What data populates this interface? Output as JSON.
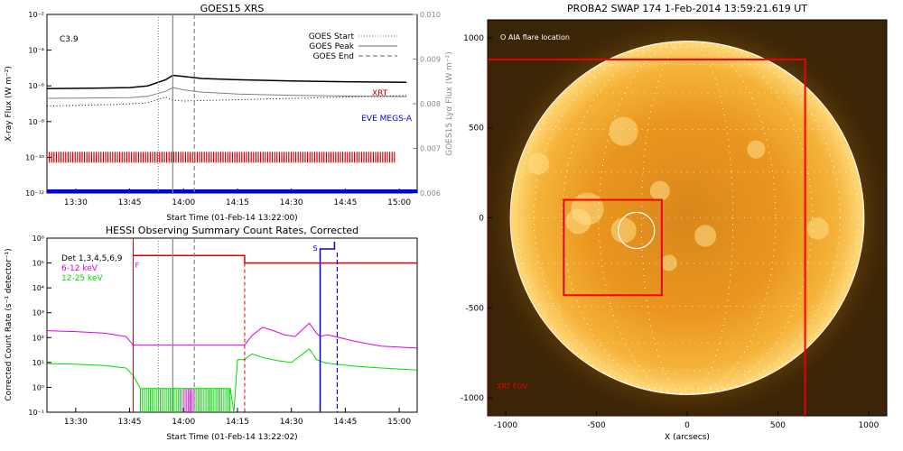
{
  "colors": {
    "goes_long": "#000000",
    "goes_short": "#808080",
    "lyx": "#000000",
    "xrt": "#cc0000",
    "eve": "#0000dd",
    "det": "#000000",
    "low": "#dd00dd",
    "mid": "#00dd00",
    "attenuator": "#dd0000",
    "saa": "#0000dd",
    "sun_bg": "#3a2506",
    "sun_disk": "#f2a21c",
    "fov": "#ee0000"
  },
  "panels": {
    "goes": {
      "title": "GOES15 XRS",
      "class_label": "C3.9",
      "ylabel_left": "X-ray Flux (W m⁻²)",
      "ylabel_right": "GOES15 Lyα Flux (W m⁻²)",
      "xlabel": "Start Time (01-Feb-14 13:22:00)",
      "legend": [
        {
          "label": "GOES Start",
          "style": "dotted"
        },
        {
          "label": "GOES Peak",
          "style": "solid"
        },
        {
          "label": "GOES End",
          "style": "dashed"
        }
      ],
      "xrt_label": "XRT",
      "eve_label": "EVE MEGS-A"
    },
    "hessi": {
      "title": "HESSI Observing Summary Count Rates, Corrected",
      "ylabel": "Corrected Count Rate (s⁻¹ detector⁻¹)",
      "xlabel": "Start Time (01-Feb-14 13:22:02)",
      "legend": [
        {
          "label": "Det 1,3,4,5,6,9",
          "color_key": "det"
        },
        {
          "label": "6-12 keV",
          "color_key": "low"
        },
        {
          "label": "12-25 keV",
          "color_key": "mid"
        }
      ],
      "flag_f": "F",
      "flag_s": "S"
    },
    "swap": {
      "title": "PROBA2 SWAP 174   1-Feb-2014 13:59:21.619 UT",
      "aia_label": "O AIA flare location",
      "xrt_fov_label": "XRT FOV",
      "xlabel": "X (arcsecs)"
    }
  },
  "chart_data": [
    {
      "type": "line",
      "title": "GOES15 XRS",
      "xlabel": "Start Time (01-Feb-14 13:22:00)",
      "ylabel": "X-ray Flux (W m⁻²)",
      "ylabel_right": "GOES15 Lyα Flux (W m⁻²)",
      "x_ticks": [
        "13:30",
        "13:45",
        "14:00",
        "14:15",
        "14:30",
        "14:45",
        "15:00"
      ],
      "xlim": [
        "13:22",
        "15:05"
      ],
      "y_scale": "log",
      "y_ticks": [
        "10⁻²",
        "10⁻⁴",
        "10⁻⁶",
        "10⁻⁸",
        "10⁻¹⁰",
        "10⁻¹²"
      ],
      "ylim": [
        1e-12,
        0.01
      ],
      "y_right_ticks": [
        "0.010",
        "0.009",
        "0.008",
        "0.007",
        "0.006"
      ],
      "y_right_lim": [
        0.006,
        0.01
      ],
      "markers": {
        "goes_start": "13:53",
        "goes_peak": "13:57",
        "goes_end": "14:03"
      },
      "series": [
        {
          "x": [
            "13:22",
            "13:35",
            "13:45",
            "13:50",
            "13:55",
            "13:57",
            "14:00",
            "14:05",
            "14:15",
            "14:30",
            "14:45",
            "15:02"
          ],
          "values": [
            7e-07,
            7.5e-07,
            8e-07,
            1e-06,
            2.2e-06,
            3.9e-06,
            3.4e-06,
            2.6e-06,
            2.2e-06,
            1.9e-06,
            1.7e-06,
            1.6e-06
          ]
        },
        {
          "x": [
            "13:22",
            "13:35",
            "13:45",
            "13:50",
            "13:55",
            "13:57",
            "14:00",
            "14:05",
            "14:15",
            "14:30",
            "14:45",
            "15:02"
          ],
          "values": [
            2e-07,
            2.1e-07,
            2.2e-07,
            2.6e-07,
            5e-07,
            8e-07,
            6e-07,
            4.5e-07,
            3.5e-07,
            3e-07,
            2.7e-07,
            2.5e-07
          ]
        },
        {
          "axis": "right",
          "x": [
            "13:22",
            "13:40",
            "13:50",
            "13:55",
            "13:57",
            "14:00",
            "14:10",
            "14:30",
            "14:50",
            "15:02"
          ],
          "values": [
            0.00795,
            0.00798,
            0.00802,
            0.00815,
            0.00808,
            0.00806,
            0.00808,
            0.00812,
            0.00816,
            0.00818
          ]
        },
        {
          "name": "XRT",
          "style": "ticks",
          "from": "13:22",
          "to": "14:59",
          "y": 1e-10
        },
        {
          "name": "EVE MEGS-A",
          "style": "bar",
          "from": "13:22",
          "to": "15:05",
          "y": 1e-12
        }
      ]
    },
    {
      "type": "line",
      "title": "HESSI Observing Summary Count Rates, Corrected",
      "xlabel": "Start Time (01-Feb-14 13:22:02)",
      "ylabel": "Corrected Count Rate (s⁻¹ detector⁻¹)",
      "x_ticks": [
        "13:30",
        "13:45",
        "14:00",
        "14:15",
        "14:30",
        "14:45",
        "15:00"
      ],
      "xlim": [
        "13:22",
        "15:05"
      ],
      "y_scale": "log",
      "y_ticks": [
        "10⁻¹",
        "10⁰",
        "10¹",
        "10²",
        "10³",
        "10⁴",
        "10⁵",
        "10⁶"
      ],
      "ylim": [
        0.1,
        1000000.0
      ],
      "markers": {
        "goes_start": "13:53",
        "goes_peak": "13:57",
        "goes_end": "14:03",
        "night_start": "13:46",
        "night_end": "14:17",
        "attenuator": "14:17"
      },
      "series": [
        {
          "name": "6-12 keV",
          "x": [
            "13:22",
            "13:30",
            "13:38",
            "13:44",
            "13:46",
            "14:17",
            "14:19",
            "14:22",
            "14:25",
            "14:28",
            "14:31",
            "14:35",
            "14:37",
            "14:38",
            "14:40",
            "14:48",
            "14:55",
            "15:05"
          ],
          "values": [
            190,
            175,
            150,
            110,
            50,
            50,
            120,
            260,
            190,
            130,
            110,
            380,
            150,
            110,
            130,
            70,
            45,
            38
          ]
        },
        {
          "name": "12-25 keV",
          "x": [
            "13:22",
            "13:30",
            "13:38",
            "13:44",
            "13:46",
            "13:48",
            "14:13",
            "14:14",
            "14:15",
            "14:17",
            "14:19",
            "14:22",
            "14:26",
            "14:30",
            "14:35",
            "14:37",
            "14:39",
            "14:41",
            "14:48",
            "14:55",
            "15:05"
          ],
          "values": [
            9,
            8.5,
            7.5,
            6,
            3,
            0.9,
            0.9,
            0.1,
            13,
            13,
            22,
            16,
            12,
            10,
            35,
            13,
            10,
            9,
            7,
            6,
            5
          ]
        },
        {
          "name": "attenuator",
          "x": [
            "13:46",
            "14:17",
            "14:17",
            "15:05"
          ],
          "values": [
            200000,
            200000,
            100000,
            100000
          ]
        }
      ],
      "saa_interval": [
        "14:38",
        "14:42"
      ]
    },
    {
      "type": "image",
      "title": "PROBA2 SWAP 174   1-Feb-2014 13:59:21.619 UT",
      "xlabel": "X (arcsecs)",
      "x_ticks": [
        -1000,
        -500,
        0,
        500,
        1000
      ],
      "y_ticks": [
        -1000,
        -500,
        0,
        500,
        1000
      ],
      "xlim": [
        -1100,
        1100
      ],
      "ylim": [
        -1100,
        1100
      ],
      "solar_radius": 975,
      "aia_flare_location": {
        "x": -280,
        "y": -70,
        "r": 100
      },
      "boxes": [
        {
          "name": "xrt_fov",
          "x0": -1100,
          "x1": 650,
          "y0": -1100,
          "y1": 880
        },
        {
          "name": "zoom",
          "x0": -680,
          "x1": -140,
          "y0": -430,
          "y1": 100
        }
      ]
    }
  ]
}
